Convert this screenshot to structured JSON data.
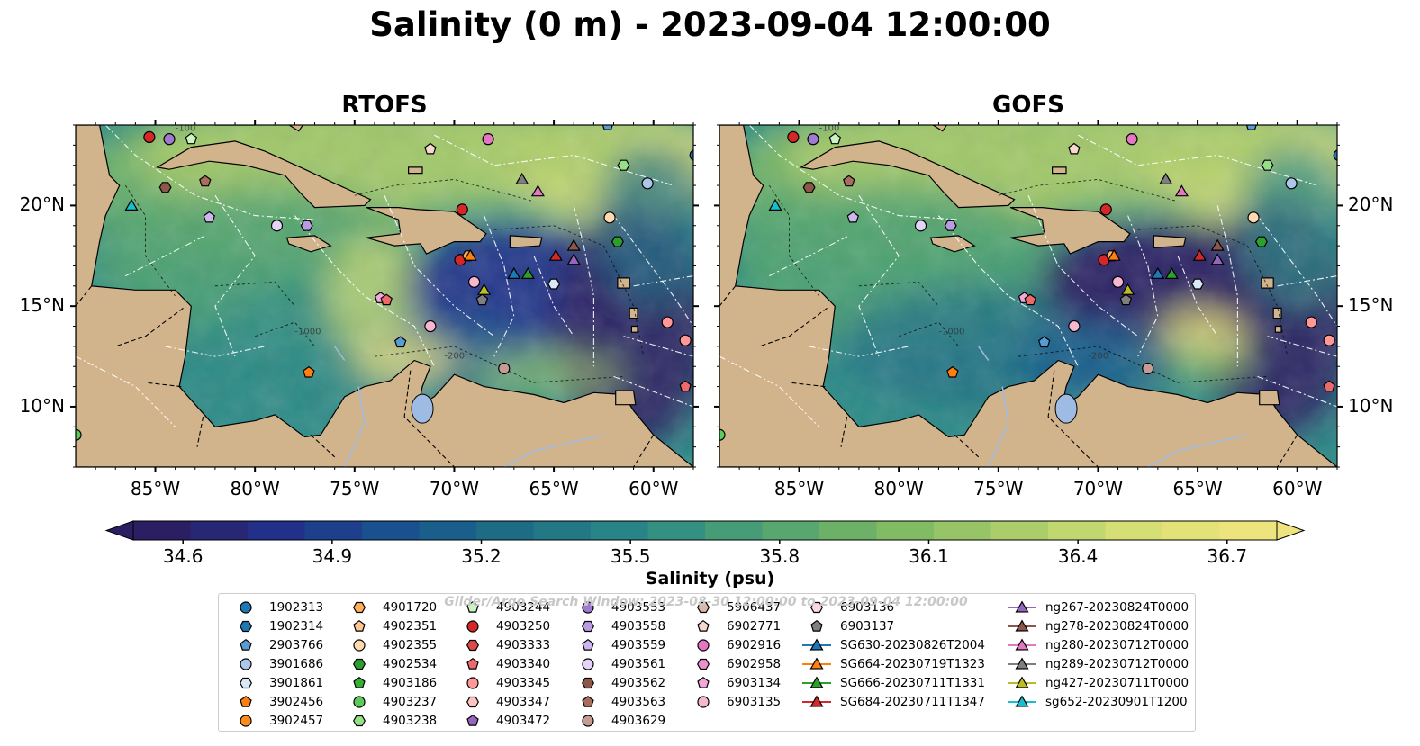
{
  "title": "Salinity (0 m) - 2023-09-04 12:00:00",
  "panels": [
    {
      "title": "RTOFS"
    },
    {
      "title": "GOFS"
    }
  ],
  "axes": {
    "x_ticks": [
      "85°W",
      "80°W",
      "75°W",
      "70°W",
      "65°W",
      "60°W"
    ],
    "x_values": [
      -85,
      -80,
      -75,
      -70,
      -65,
      -60
    ],
    "y_ticks": [
      "20°N",
      "15°N",
      "10°N"
    ],
    "y_values": [
      20,
      15,
      10
    ],
    "lon_range": [
      -89,
      -58
    ],
    "lat_range": [
      7,
      24
    ]
  },
  "colorbar": {
    "label": "Salinity (psu)",
    "ticks": [
      "34.6",
      "34.9",
      "35.2",
      "35.5",
      "35.8",
      "36.1",
      "36.4",
      "36.7"
    ],
    "range": [
      34.5,
      36.8
    ],
    "colormap": [
      "#2c1e62",
      "#23318b",
      "#17558e",
      "#1f6f85",
      "#2b8a86",
      "#4ea271",
      "#7ab863",
      "#a6cb69",
      "#d4df74",
      "#eee47e"
    ]
  },
  "contour_labels": [
    "-1000",
    "-200",
    "-100"
  ],
  "watermark": "Glider/Argo Search Window: 2023-08-30 12:00:00 to 2023-09-04 12:00:00",
  "land_color": "#d2b48c",
  "legend": {
    "columns": [
      [
        {
          "label": "1902313",
          "marker": "circle",
          "color": "#1f77b4"
        },
        {
          "label": "1902314",
          "marker": "hexagon",
          "color": "#1f77b4"
        },
        {
          "label": "2903766",
          "marker": "pentagon",
          "color": "#5a9bd4"
        },
        {
          "label": "3901686",
          "marker": "circle",
          "color": "#aec7e8"
        },
        {
          "label": "3901861",
          "marker": "hexagon",
          "color": "#d8e8f6"
        },
        {
          "label": "3902456",
          "marker": "pentagon",
          "color": "#ff7f0e"
        },
        {
          "label": "3902457",
          "marker": "circle",
          "color": "#ff8c1a"
        }
      ],
      [
        {
          "label": "4901720",
          "marker": "hexagon",
          "color": "#ffae5c"
        },
        {
          "label": "4902351",
          "marker": "pentagon",
          "color": "#ffc690"
        },
        {
          "label": "4902355",
          "marker": "circle",
          "color": "#ffd9b0"
        },
        {
          "label": "4902534",
          "marker": "hexagon",
          "color": "#2ca02c"
        },
        {
          "label": "4903186",
          "marker": "pentagon",
          "color": "#35b035"
        },
        {
          "label": "4903237",
          "marker": "circle",
          "color": "#5ccb5c"
        },
        {
          "label": "4903238",
          "marker": "hexagon",
          "color": "#98df8a"
        }
      ],
      [
        {
          "label": "4903244",
          "marker": "pentagon",
          "color": "#c8f5c0"
        },
        {
          "label": "4903250",
          "marker": "circle",
          "color": "#d62728"
        },
        {
          "label": "4903333",
          "marker": "hexagon",
          "color": "#e04848"
        },
        {
          "label": "4903340",
          "marker": "pentagon",
          "color": "#ee6a6a"
        },
        {
          "label": "4903345",
          "marker": "circle",
          "color": "#ff9896"
        },
        {
          "label": "4903347",
          "marker": "hexagon",
          "color": "#ffc4c2"
        },
        {
          "label": "4903472",
          "marker": "pentagon",
          "color": "#9467bd"
        }
      ],
      [
        {
          "label": "4903553",
          "marker": "circle",
          "color": "#a07ad0"
        },
        {
          "label": "4903558",
          "marker": "hexagon",
          "color": "#b89be0"
        },
        {
          "label": "4903559",
          "marker": "pentagon",
          "color": "#cdb5ee"
        },
        {
          "label": "4903561",
          "marker": "circle",
          "color": "#e4d4f8"
        },
        {
          "label": "4903562",
          "marker": "hexagon",
          "color": "#8c564b"
        },
        {
          "label": "4903563",
          "marker": "pentagon",
          "color": "#a86d5e"
        },
        {
          "label": "4903629",
          "marker": "circle",
          "color": "#c49c94"
        }
      ],
      [
        {
          "label": "5906437",
          "marker": "hexagon",
          "color": "#dcb5ab"
        },
        {
          "label": "6902771",
          "marker": "pentagon",
          "color": "#f7d8cc"
        },
        {
          "label": "6902916",
          "marker": "circle",
          "color": "#e377c2"
        },
        {
          "label": "6902958",
          "marker": "hexagon",
          "color": "#ea90cf"
        },
        {
          "label": "6903134",
          "marker": "pentagon",
          "color": "#f2a8dc"
        },
        {
          "label": "6903135",
          "marker": "circle",
          "color": "#f7b6d2"
        }
      ],
      [
        {
          "label": "6903136",
          "marker": "hexagon",
          "color": "#fbd6ea"
        },
        {
          "label": "6903137",
          "marker": "pentagon",
          "color": "#7f7f7f"
        },
        {
          "label": "SG630-20230826T2004",
          "marker": "triangle-line",
          "color": "#1f77b4"
        },
        {
          "label": "SG664-20230719T1323",
          "marker": "triangle-line",
          "color": "#ff7f0e"
        },
        {
          "label": "SG666-20230711T1331",
          "marker": "triangle-line",
          "color": "#2ca02c"
        },
        {
          "label": "SG684-20230711T1347",
          "marker": "triangle-line",
          "color": "#d62728"
        }
      ],
      [
        {
          "label": "ng267-20230824T0000",
          "marker": "triangle-line",
          "color": "#9467bd"
        },
        {
          "label": "ng278-20230824T0000",
          "marker": "triangle-line",
          "color": "#8c564b"
        },
        {
          "label": "ng280-20230712T0000",
          "marker": "triangle-line",
          "color": "#e377c2"
        },
        {
          "label": "ng289-20230712T0000",
          "marker": "triangle-line",
          "color": "#7f7f7f"
        },
        {
          "label": "ng427-20230711T0000",
          "marker": "triangle-line",
          "color": "#bcbd22"
        },
        {
          "label": "sg652-20230901T1200",
          "marker": "triangle-line",
          "color": "#17becf"
        }
      ]
    ]
  },
  "observations": [
    {
      "label": "4903250",
      "lon": -85.3,
      "lat": 23.4
    },
    {
      "label": "4903553",
      "lon": -84.3,
      "lat": 23.3
    },
    {
      "label": "4903244",
      "lon": -83.2,
      "lat": 23.3
    },
    {
      "label": "4903562",
      "lon": -84.5,
      "lat": 20.9
    },
    {
      "label": "4903563",
      "lon": -82.5,
      "lat": 21.2
    },
    {
      "label": "4903559",
      "lon": -82.3,
      "lat": 19.4
    },
    {
      "label": "4903561",
      "lon": -78.9,
      "lat": 19.0
    },
    {
      "label": "4903558",
      "lon": -77.4,
      "lat": 19.0
    },
    {
      "label": "6902771",
      "lon": -71.2,
      "lat": 22.8
    },
    {
      "label": "6902916",
      "lon": -68.3,
      "lat": 23.3
    },
    {
      "label": "4903250",
      "lon": -69.7,
      "lat": 17.3
    },
    {
      "label": "4903250",
      "lon": -69.6,
      "lat": 19.8
    },
    {
      "label": "4901720",
      "lon": -69.3,
      "lat": 17.5
    },
    {
      "label": "6903135",
      "lon": -69.0,
      "lat": 16.2
    },
    {
      "label": "6903137",
      "lon": -68.6,
      "lat": 15.3
    },
    {
      "label": "4902355",
      "lon": -62.2,
      "lat": 19.4
    },
    {
      "label": "4902534",
      "lon": -61.8,
      "lat": 18.2
    },
    {
      "label": "3901861",
      "lon": -65.0,
      "lat": 16.1
    },
    {
      "label": "4903238",
      "lon": -61.5,
      "lat": 22.0
    },
    {
      "label": "3901686",
      "lon": -60.3,
      "lat": 21.1
    },
    {
      "label": "1902313",
      "lon": -57.9,
      "lat": 22.5
    },
    {
      "label": "6903134",
      "lon": -73.7,
      "lat": 15.4
    },
    {
      "label": "4903340",
      "lon": -73.4,
      "lat": 15.3
    },
    {
      "label": "6903135",
      "lon": -71.2,
      "lat": 14.0
    },
    {
      "label": "2903766",
      "lon": -72.7,
      "lat": 13.2
    },
    {
      "label": "4903629",
      "lon": -67.5,
      "lat": 11.9
    },
    {
      "label": "3902456",
      "lon": -77.3,
      "lat": 11.7
    },
    {
      "label": "4903345",
      "lon": -59.3,
      "lat": 14.2
    },
    {
      "label": "4903345",
      "lon": -58.4,
      "lat": 13.3
    },
    {
      "label": "4903340",
      "lon": -58.4,
      "lat": 11.0
    },
    {
      "label": "4903237",
      "lon": -89.0,
      "lat": 8.6
    },
    {
      "label": "2903766",
      "lon": -62.3,
      "lat": 24.0
    },
    {
      "label": "sg652-20230901T1200",
      "lon": -86.2,
      "lat": 20.0
    },
    {
      "label": "ng289-20230712T0000",
      "lon": -66.6,
      "lat": 21.3
    },
    {
      "label": "ng280-20230712T0000",
      "lon": -65.8,
      "lat": 20.7
    },
    {
      "label": "SG630-20230826T2004",
      "lon": -67.0,
      "lat": 16.6
    },
    {
      "label": "SG666-20230711T1331",
      "lon": -66.3,
      "lat": 16.6
    },
    {
      "label": "SG684-20230711T1347",
      "lon": -64.9,
      "lat": 17.5
    },
    {
      "label": "ng278-20230824T0000",
      "lon": -64.0,
      "lat": 18.0
    },
    {
      "label": "ng267-20230824T0000",
      "lon": -64.0,
      "lat": 17.3
    },
    {
      "label": "ng427-20230711T0000",
      "lon": -68.5,
      "lat": 15.8
    },
    {
      "label": "SG664-20230719T1323",
      "lon": -69.2,
      "lat": 17.5
    }
  ]
}
